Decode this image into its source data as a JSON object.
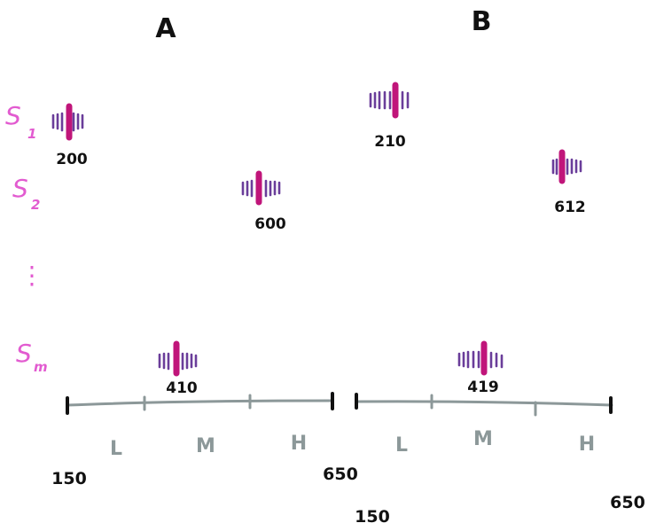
{
  "colors": {
    "stripe": "#6a3d9a",
    "peak": "#c0157a",
    "axis": "#8c9899",
    "row_label": "#e25bd0",
    "ink": "#111111"
  },
  "rows": [
    {
      "letter": "S",
      "sub": "1"
    },
    {
      "letter": "S",
      "sub": "2"
    },
    {
      "letter": "⋮",
      "sub": ""
    },
    {
      "letter": "S",
      "sub": "m"
    }
  ],
  "panels": [
    {
      "title": "A",
      "axis_min": "150",
      "axis_max": "650",
      "bands": [
        "L",
        "M",
        "H"
      ],
      "markers": [
        {
          "row": "S1",
          "value": "200"
        },
        {
          "row": "S2",
          "value": "600"
        },
        {
          "row": "Sm",
          "value": "410"
        }
      ]
    },
    {
      "title": "B",
      "axis_min": "150",
      "axis_max": "650",
      "bands": [
        "L",
        "M",
        "H"
      ],
      "markers": [
        {
          "row": "S1",
          "value": "210"
        },
        {
          "row": "S2",
          "value": "612"
        },
        {
          "row": "Sm",
          "value": "419"
        }
      ]
    }
  ]
}
